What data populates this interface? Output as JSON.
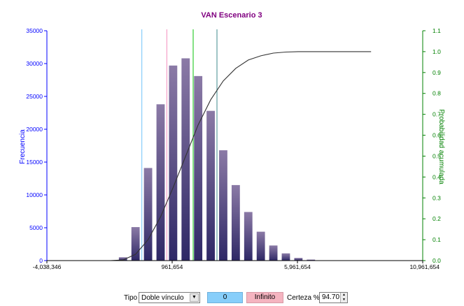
{
  "chart_data": {
    "type": "bar",
    "title": "VAN Escenario 3",
    "ylabel": "Frecuencia",
    "y2label": "Probabilidad acumulada",
    "xlim": [
      -4038346,
      10961654
    ],
    "ylim": [
      0,
      35000
    ],
    "y2lim": [
      0,
      1.1
    ],
    "x_ticks": [
      "-4,038,346",
      "961,654",
      "5,961,654",
      "10,961,654"
    ],
    "x_tick_values": [
      -4038346,
      961654,
      5961654,
      10961654
    ],
    "y_ticks": [
      "0",
      "5000",
      "10000",
      "15000",
      "20000",
      "25000",
      "30000",
      "35000"
    ],
    "y_tick_values": [
      0,
      5000,
      10000,
      15000,
      20000,
      25000,
      30000,
      35000
    ],
    "y2_ticks": [
      "0.0",
      "0.1",
      "0.2",
      "0.3",
      "0.4",
      "0.5",
      "0.6",
      "0.7",
      "0.8",
      "0.9",
      "1.0",
      "1.1"
    ],
    "y2_tick_values": [
      0,
      0.1,
      0.2,
      0.3,
      0.4,
      0.5,
      0.6,
      0.7,
      0.8,
      0.9,
      1.0,
      1.1
    ],
    "bin_width": 500000,
    "bins": [
      {
        "x": -1000000,
        "y": 500
      },
      {
        "x": -500000,
        "y": 5100
      },
      {
        "x": 0,
        "y": 14100
      },
      {
        "x": 500000,
        "y": 23800
      },
      {
        "x": 1000000,
        "y": 29700
      },
      {
        "x": 1500000,
        "y": 30800
      },
      {
        "x": 2000000,
        "y": 28100
      },
      {
        "x": 2500000,
        "y": 22800
      },
      {
        "x": 3000000,
        "y": 16800
      },
      {
        "x": 3500000,
        "y": 11500
      },
      {
        "x": 4000000,
        "y": 7400
      },
      {
        "x": 4500000,
        "y": 4400
      },
      {
        "x": 5000000,
        "y": 2300
      },
      {
        "x": 5500000,
        "y": 1100
      },
      {
        "x": 6000000,
        "y": 400
      },
      {
        "x": 6500000,
        "y": 150
      }
    ],
    "cumulative_x": [
      -4038346,
      -1500000,
      -1000000,
      -500000,
      0,
      500000,
      1000000,
      1500000,
      2000000,
      2500000,
      3000000,
      3500000,
      4000000,
      4500000,
      5000000,
      5500000,
      6000000,
      6500000,
      7000000,
      8900000
    ],
    "cumulative_y": [
      0,
      0,
      0.003,
      0.03,
      0.1,
      0.21,
      0.35,
      0.5,
      0.65,
      0.77,
      0.86,
      0.92,
      0.96,
      0.98,
      0.993,
      0.998,
      1.0,
      1.0,
      1.0,
      1.0
    ],
    "markers": [
      {
        "x": -250000,
        "color": "#87cefa"
      },
      {
        "x": 750000,
        "color": "#f5a0c8"
      },
      {
        "x": 1800000,
        "color": "#32cd32"
      },
      {
        "x": 2750000,
        "color": "#5f9ea0"
      }
    ],
    "colors": {
      "title": "#800080",
      "left_axis": "#0000ff",
      "right_axis": "#008000",
      "bar_top": "#8b7aa6",
      "bar_bottom": "#2e2866",
      "cumulative": "#333333"
    },
    "grid": false
  },
  "toolbar": {
    "tipo_label": "Tipo",
    "tipo_value": "Doble vínculo",
    "low_value": "0",
    "high_value": "Infinito",
    "certeza_label": "Certeza %",
    "certeza_value": "94.70"
  }
}
